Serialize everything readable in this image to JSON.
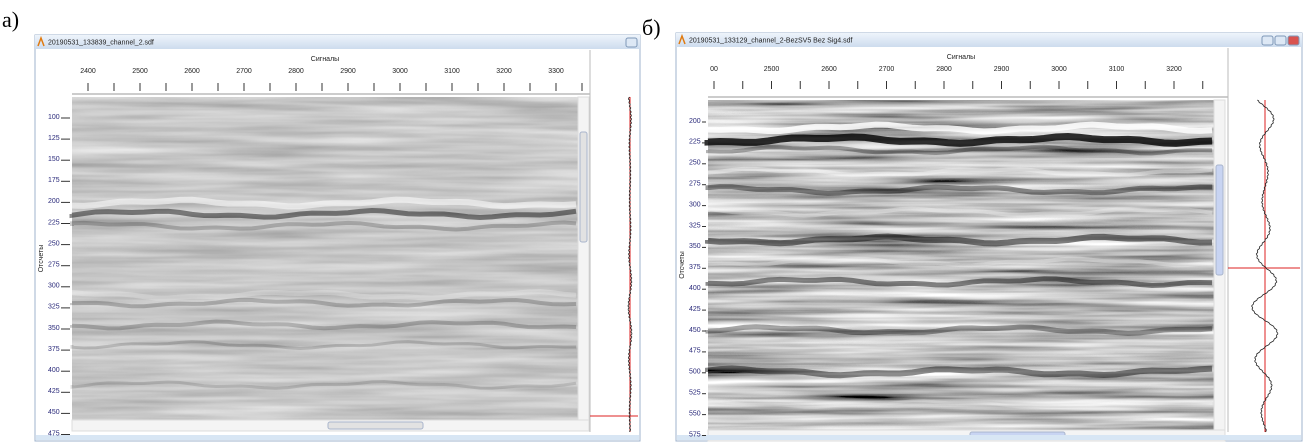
{
  "panels": [
    {
      "label": "а)",
      "window_title": "20190531_133839_channel_2.sdf",
      "x_axis_label": "Сигналы",
      "y_axis_label": "Отсчеты",
      "x_ticks": [
        "2400",
        "2500",
        "2600",
        "2700",
        "2800",
        "2900",
        "3000",
        "3100",
        "3200",
        "3300"
      ],
      "y_ticks": [
        "100",
        "125",
        "150",
        "175",
        "200",
        "225",
        "250",
        "275",
        "300",
        "325",
        "350",
        "375",
        "400",
        "425",
        "450",
        "475"
      ]
    },
    {
      "label": "б)",
      "window_title": "20190531_133129_channel_2-BezSV5 Bez Sig4.sdf",
      "x_axis_label": "Сигналы",
      "y_axis_label": "Отсчеты",
      "x_ticks": [
        "00",
        "2500",
        "2600",
        "2700",
        "2800",
        "2900",
        "3000",
        "3100",
        "3200"
      ],
      "y_ticks": [
        "200",
        "225",
        "250",
        "275",
        "300",
        "325",
        "350",
        "375",
        "400",
        "425",
        "450",
        "475",
        "500",
        "525",
        "550",
        "575"
      ]
    }
  ]
}
